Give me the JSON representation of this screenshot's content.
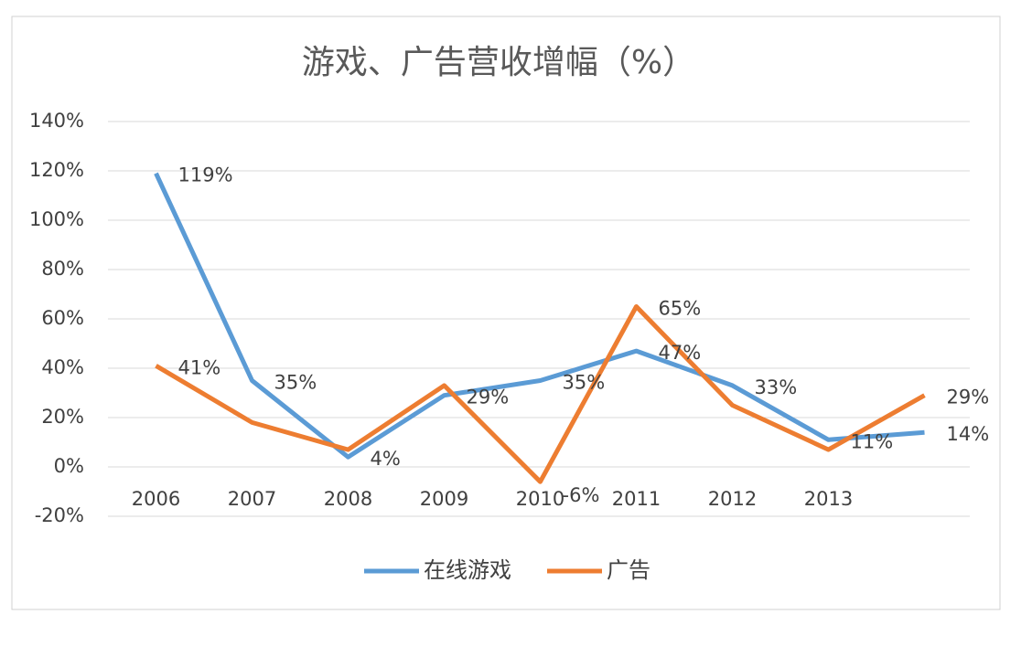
{
  "chart_data": {
    "type": "line",
    "title": "游戏、广告营收增幅（%）",
    "categories": [
      "2006",
      "2007",
      "2008",
      "2009",
      "2010",
      "2011",
      "2012",
      "2013",
      null
    ],
    "series": [
      {
        "name": "在线游戏",
        "color": "#5b9bd5",
        "values": [
          119,
          35,
          4,
          29,
          35,
          47,
          33,
          11,
          14
        ],
        "value_labels": [
          "119%",
          "35%",
          "4%",
          "29%",
          "35%",
          "47%",
          "33%",
          "11%",
          "14%"
        ]
      },
      {
        "name": "广告",
        "color": "#ed7d31",
        "values": [
          41,
          18,
          7,
          33,
          -6,
          65,
          25,
          7,
          29
        ],
        "value_labels": [
          "41%",
          null,
          null,
          null,
          "-6%",
          "65%",
          null,
          null,
          "29%"
        ]
      }
    ],
    "ylim": [
      -20,
      140
    ],
    "yticks": [
      {
        "value": -20,
        "label": "-20%"
      },
      {
        "value": 0,
        "label": "0%"
      },
      {
        "value": 20,
        "label": "20%"
      },
      {
        "value": 40,
        "label": "40%"
      },
      {
        "value": 60,
        "label": "60%"
      },
      {
        "value": 80,
        "label": "80%"
      },
      {
        "value": 100,
        "label": "100%"
      },
      {
        "value": 120,
        "label": "120%"
      },
      {
        "value": 140,
        "label": "140%"
      }
    ],
    "grid": true,
    "legend": "bottom"
  }
}
